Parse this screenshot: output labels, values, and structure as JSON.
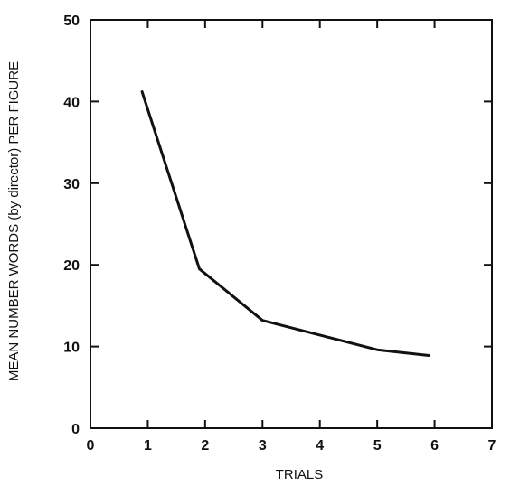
{
  "chart_data": {
    "type": "line",
    "title": "",
    "xlabel": "TRIALS",
    "ylabel": "MEAN NUMBER WORDS (by director) PER FIGURE",
    "xlim": [
      0,
      7
    ],
    "ylim": [
      0,
      50
    ],
    "x_ticks": [
      "0",
      "1",
      "2",
      "3",
      "4",
      "5",
      "6",
      "7"
    ],
    "y_ticks": [
      "0",
      "10",
      "20",
      "30",
      "40",
      "50"
    ],
    "grid": false,
    "legend": "none",
    "line_color": "#111111",
    "series": [
      {
        "x": [
          0.9,
          1.9,
          3.0,
          4.0,
          5.0,
          5.9
        ],
        "values": [
          41.2,
          19.5,
          13.2,
          11.4,
          9.6,
          8.9
        ]
      }
    ]
  }
}
